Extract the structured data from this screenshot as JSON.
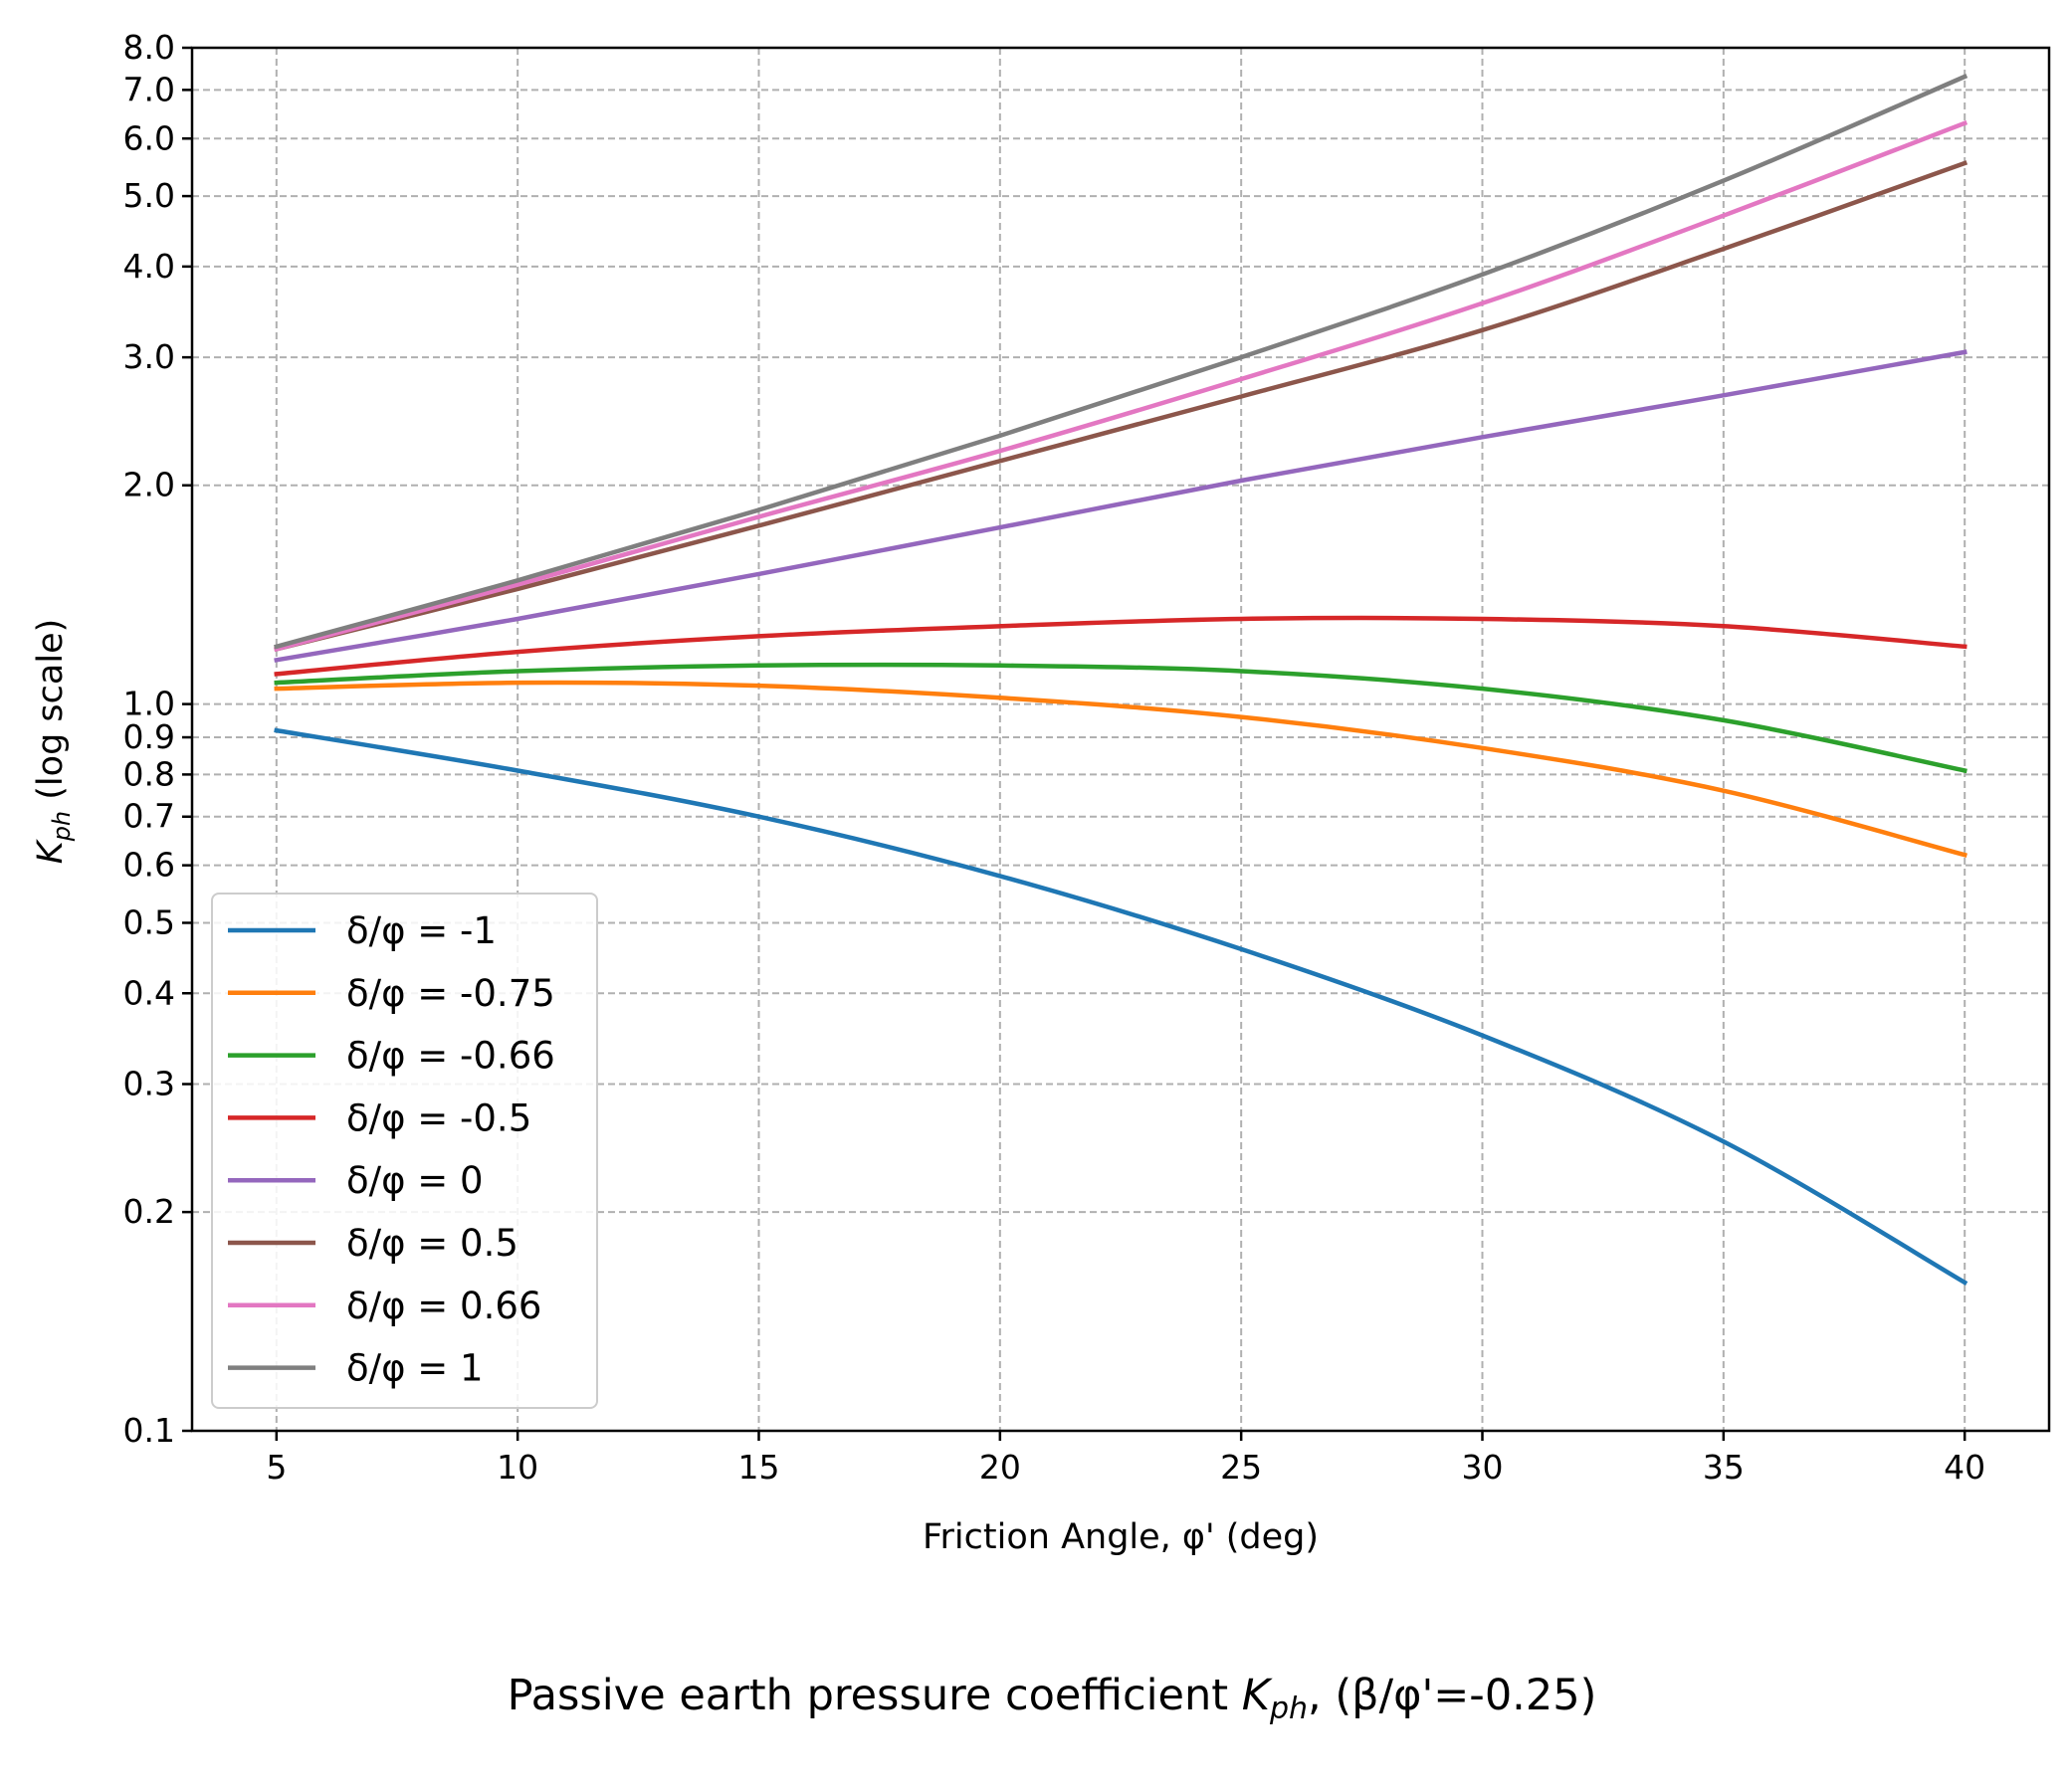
{
  "chart_data": {
    "type": "line",
    "caption": {
      "prefix": "Passive earth pressure coefficient ",
      "symbol": "K",
      "subscript": "ph",
      "suffix": ", (β/φ'=-0.25)"
    },
    "xlabel": "Friction Angle, φ' (deg)",
    "ylabel": {
      "symbol": "K",
      "subscript": "ph",
      "suffix": " (log scale)"
    },
    "x_scale": "linear",
    "y_scale": "log",
    "xlim": [
      3.25,
      41.75
    ],
    "ylim": [
      0.1,
      8.0
    ],
    "xticks": [
      5,
      10,
      15,
      20,
      25,
      30,
      35,
      40
    ],
    "xtick_labels": [
      "5",
      "10",
      "15",
      "20",
      "25",
      "30",
      "35",
      "40"
    ],
    "yticks": [
      0.1,
      0.2,
      0.3,
      0.4,
      0.5,
      0.6,
      0.7,
      0.8,
      0.9,
      1.0,
      2.0,
      3.0,
      4.0,
      5.0,
      6.0,
      7.0,
      8.0
    ],
    "ytick_labels": [
      "0.1",
      "0.2",
      "0.3",
      "0.4",
      "0.5",
      "0.6",
      "0.7",
      "0.8",
      "0.9",
      "1.0",
      "2.0",
      "3.0",
      "4.0",
      "5.0",
      "6.0",
      "7.0",
      "8.0"
    ],
    "grid": true,
    "legend_position": "lower-left",
    "x": [
      5,
      10,
      15,
      20,
      25,
      30,
      35,
      40
    ],
    "series": [
      {
        "name": "δ/φ = -1",
        "color": "#1f77b4",
        "values": [
          0.92,
          0.81,
          0.7,
          0.58,
          0.46,
          0.35,
          0.25,
          0.16
        ]
      },
      {
        "name": "δ/φ = -0.75",
        "color": "#ff7f0e",
        "values": [
          1.05,
          1.07,
          1.06,
          1.02,
          0.96,
          0.87,
          0.76,
          0.62
        ]
      },
      {
        "name": "δ/φ = -0.66",
        "color": "#2ca02c",
        "values": [
          1.07,
          1.11,
          1.13,
          1.13,
          1.11,
          1.05,
          0.95,
          0.81
        ]
      },
      {
        "name": "δ/φ = -0.5",
        "color": "#d62728",
        "values": [
          1.1,
          1.18,
          1.24,
          1.28,
          1.31,
          1.31,
          1.28,
          1.2
        ]
      },
      {
        "name": "δ/φ = 0",
        "color": "#9467bd",
        "values": [
          1.15,
          1.31,
          1.51,
          1.75,
          2.03,
          2.33,
          2.66,
          3.05
        ]
      },
      {
        "name": "δ/φ = 0.5",
        "color": "#8c564b",
        "values": [
          1.19,
          1.44,
          1.76,
          2.16,
          2.65,
          3.27,
          4.23,
          5.55
        ]
      },
      {
        "name": "δ/φ = 0.66",
        "color": "#e377c2",
        "values": [
          1.19,
          1.46,
          1.81,
          2.23,
          2.8,
          3.56,
          4.7,
          6.3
        ]
      },
      {
        "name": "δ/φ = 1",
        "color": "#7f7f7f",
        "values": [
          1.2,
          1.48,
          1.85,
          2.34,
          3.0,
          3.9,
          5.25,
          7.3
        ]
      }
    ]
  }
}
